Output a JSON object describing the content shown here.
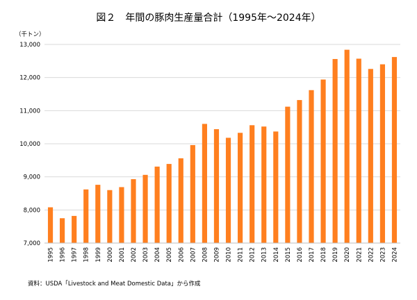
{
  "chart_data": {
    "type": "bar",
    "title": "図２　年間の豚肉生産量合計（1995年～2024年）",
    "unit_label": "（千トン）",
    "source": "資料：USDA「Livestock and Meat Domestic Data」から作成",
    "bar_color": "#ff7f1f",
    "grid": true,
    "ylim": [
      7000,
      13000
    ],
    "yticks": [
      7000,
      8000,
      9000,
      10000,
      11000,
      12000,
      13000
    ],
    "ytick_labels": [
      "7,000",
      "8,000",
      "9,000",
      "10,000",
      "11,000",
      "12,000",
      "13,000"
    ],
    "categories": [
      "1995",
      "1996",
      "1997",
      "1998",
      "1999",
      "2000",
      "2001",
      "2002",
      "2003",
      "2004",
      "2005",
      "2006",
      "2007",
      "2008",
      "2009",
      "2010",
      "2011",
      "2012",
      "2013",
      "2014",
      "2015",
      "2016",
      "2017",
      "2018",
      "2019",
      "2020",
      "2021",
      "2022",
      "2023",
      "2024"
    ],
    "values": [
      8080,
      7750,
      7820,
      8620,
      8760,
      8600,
      8690,
      8930,
      9060,
      9310,
      9390,
      9560,
      9960,
      10600,
      10440,
      10180,
      10330,
      10560,
      10520,
      10370,
      11120,
      11320,
      11620,
      11940,
      12560,
      12840,
      12570,
      12260,
      12400,
      12620
    ]
  }
}
